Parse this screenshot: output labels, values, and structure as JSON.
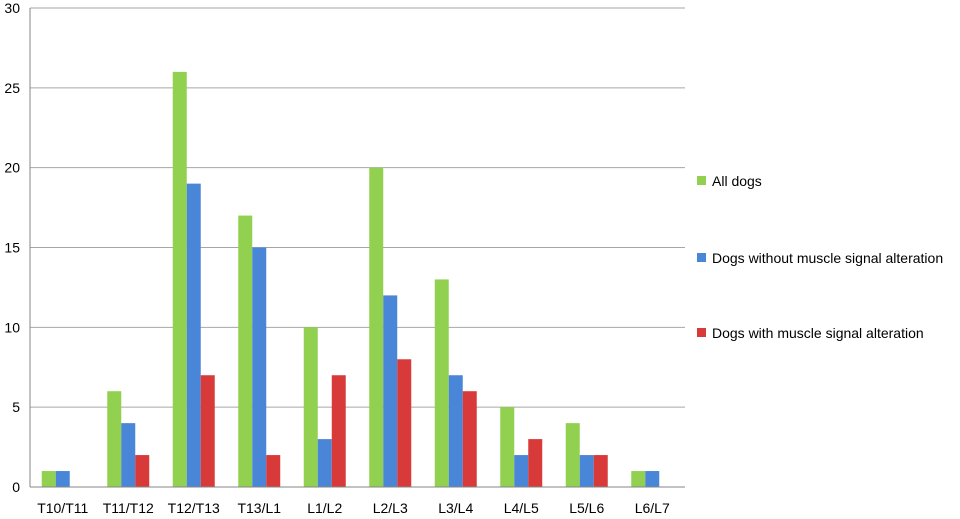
{
  "chart_data": {
    "type": "bar",
    "title": "",
    "xlabel": "",
    "ylabel": "",
    "categories": [
      "T10/T11",
      "T11/T12",
      "T12/T13",
      "T13/L1",
      "L1/L2",
      "L2/L3",
      "L3/L4",
      "L4/L5",
      "L5/L6",
      "L6/L7"
    ],
    "series": [
      {
        "name": "All dogs",
        "color": "#92d050",
        "values": [
          1,
          6,
          26,
          17,
          10,
          20,
          13,
          5,
          4,
          1
        ]
      },
      {
        "name": "Dogs without muscle signal alteration",
        "color": "#4a86d8",
        "values": [
          1,
          4,
          19,
          15,
          3,
          12,
          7,
          2,
          2,
          1
        ]
      },
      {
        "name": "Dogs with muscle signal alteration",
        "color": "#d83a3a",
        "values": [
          0,
          2,
          7,
          2,
          7,
          8,
          6,
          3,
          2,
          0
        ]
      }
    ],
    "ylim": [
      0,
      30
    ],
    "yticks": [
      0,
      5,
      10,
      15,
      20,
      25,
      30
    ],
    "grid": true,
    "legend": "right"
  }
}
